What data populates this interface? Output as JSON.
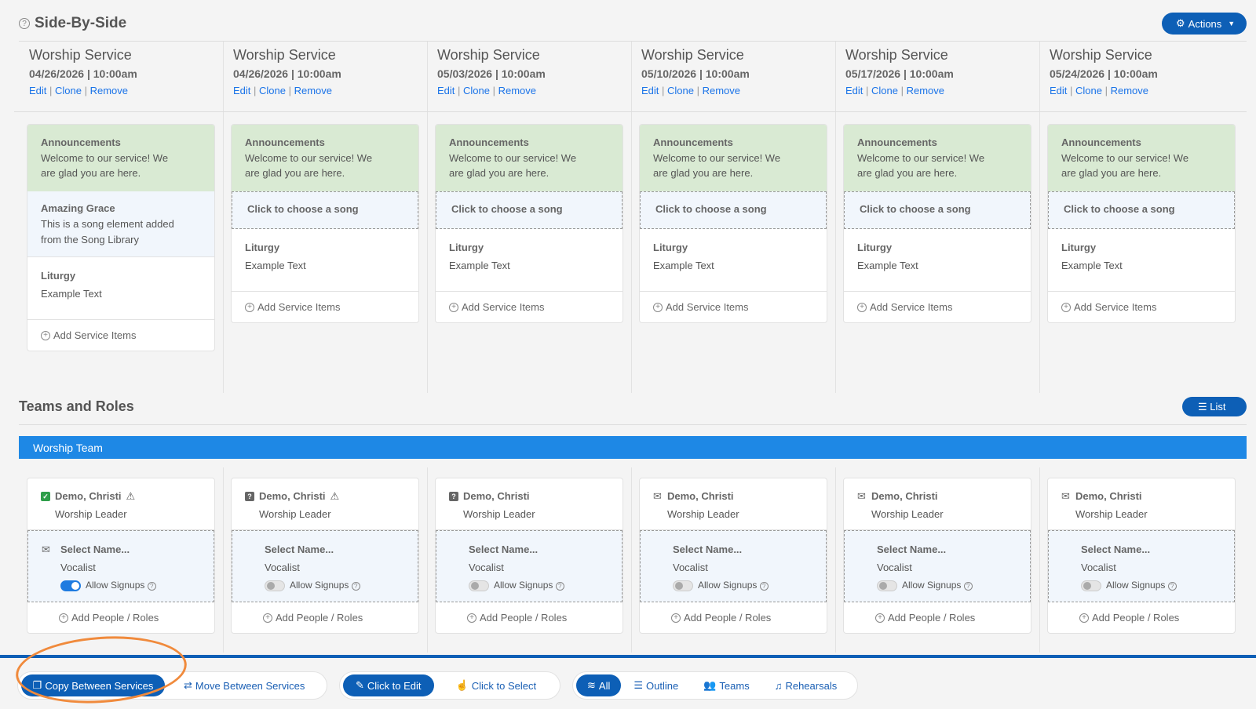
{
  "header": {
    "title": "Side-By-Side",
    "actions_label": "Actions"
  },
  "services": [
    {
      "name": "Worship Service",
      "date": "04/26/2026 | 10:00am",
      "edit": "Edit",
      "clone": "Clone",
      "remove": "Remove"
    },
    {
      "name": "Worship Service",
      "date": "04/26/2026 | 10:00am",
      "edit": "Edit",
      "clone": "Clone",
      "remove": "Remove"
    },
    {
      "name": "Worship Service",
      "date": "05/03/2026 | 10:00am",
      "edit": "Edit",
      "clone": "Clone",
      "remove": "Remove"
    },
    {
      "name": "Worship Service",
      "date": "05/10/2026 | 10:00am",
      "edit": "Edit",
      "clone": "Clone",
      "remove": "Remove"
    },
    {
      "name": "Worship Service",
      "date": "05/17/2026 | 10:00am",
      "edit": "Edit",
      "clone": "Clone",
      "remove": "Remove"
    },
    {
      "name": "Worship Service",
      "date": "05/24/2026 | 10:00am",
      "edit": "Edit",
      "clone": "Clone",
      "remove": "Remove"
    }
  ],
  "items": {
    "announcement_title": "Announcements",
    "announcement_text": "Welcome to our service! We are glad you are here.",
    "song_title": "Amazing Grace",
    "song_text": "This is a song element added from the Song Library",
    "choose_song": "Click to choose a song",
    "liturgy_title": "Liturgy",
    "liturgy_text": "Example Text",
    "add_items": "Add Service Items"
  },
  "teams": {
    "section_title": "Teams and Roles",
    "list_label": "List",
    "team_name": "Worship Team",
    "person": "Demo, Christi",
    "person_role": "Worship Leader",
    "select_name": "Select Name...",
    "slot_role": "Vocalist",
    "allow_signups": "Allow Signups",
    "add_people": "Add People / Roles",
    "statuses": [
      "confirmed",
      "unknown",
      "unknown",
      "emailed",
      "emailed",
      "emailed"
    ],
    "warnings": [
      true,
      true,
      false,
      false,
      false,
      false
    ],
    "signups_on": [
      true,
      false,
      false,
      false,
      false,
      false
    ],
    "status_colors": {
      "confirmed": "#2e9e4a",
      "unknown": "#666666",
      "emailed": "#666666"
    }
  },
  "toolbar": {
    "copy": "Copy Between Services",
    "move": "Move Between Services",
    "click_edit": "Click to Edit",
    "click_select": "Click to Select",
    "all": "All",
    "outline": "Outline",
    "teams": "Teams",
    "rehearsals": "Rehearsals"
  },
  "accent": "#0d5fb6"
}
